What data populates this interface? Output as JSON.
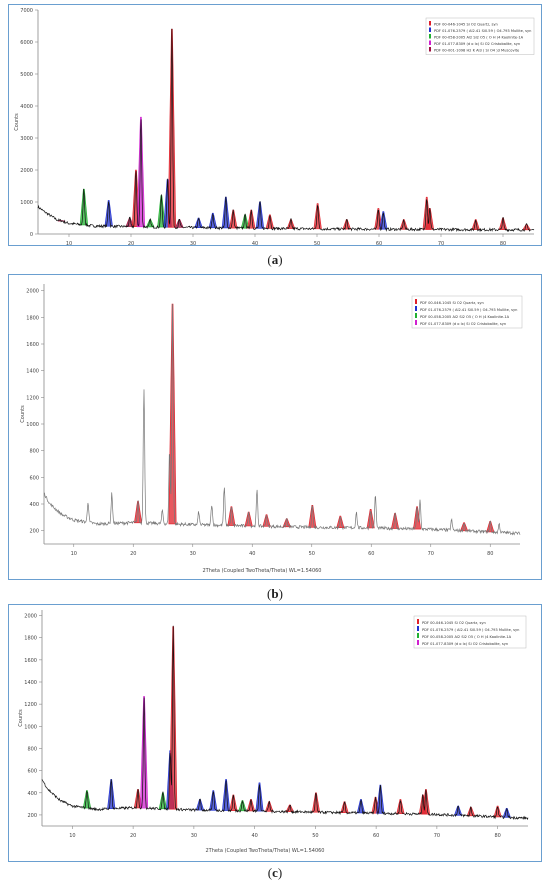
{
  "captions": [
    "(a)",
    "(b)",
    "(c)"
  ],
  "caption_letters": [
    "a",
    "b",
    "c"
  ],
  "colors": {
    "quartz": "#e0202a",
    "mullite": "#2030d0",
    "kaolinite": "#20b030",
    "cristobalite": "#d020d0",
    "muscovite": "#a01040",
    "pattern": "#111111",
    "pattern_gray": "#777777",
    "frame": "#6a9fd0"
  },
  "chart_data": [
    {
      "type": "line",
      "panel": "a",
      "title": "",
      "xlabel": "",
      "ylabel": "Counts",
      "xlim": [
        5,
        85
      ],
      "ylim": [
        0,
        7000
      ],
      "xticks": [
        10,
        20,
        30,
        40,
        50,
        60,
        70,
        80
      ],
      "yticks": [
        0,
        1000,
        2000,
        3000,
        4000,
        5000,
        6000,
        7000
      ],
      "ytick_labels": [
        "0",
        "1000",
        "2000",
        "3000",
        "4000",
        "5000",
        "6000",
        "7000"
      ],
      "grid": false,
      "legend_position": "top-right",
      "legend": [
        {
          "phase": "quartz",
          "label": "PDF 00-046-1045 Si O2 Quartz, syn"
        },
        {
          "phase": "mullite",
          "label": "PDF 01-076-2579 ( Al2.41 Si0.59 ) O4.793 Mullite, syn"
        },
        {
          "phase": "kaolinite",
          "label": "PDF 00-058-2005 Al2 Si2 O5 ( O H )4 Kaolinite-1A"
        },
        {
          "phase": "cristobalite",
          "label": "PDF 01-077-8309 (d o lx) Si O2 Cristobalite, syn"
        },
        {
          "phase": "muscovite",
          "label": "PDF 00-001-1098 H2 K Al3 ( Si O4 )3 Muscovite"
        }
      ],
      "background": [
        [
          5,
          850
        ],
        [
          6,
          700
        ],
        [
          8,
          450
        ],
        [
          10,
          330
        ],
        [
          14,
          250
        ],
        [
          20,
          230
        ],
        [
          30,
          200
        ],
        [
          40,
          180
        ],
        [
          50,
          160
        ],
        [
          60,
          150
        ],
        [
          70,
          140
        ],
        [
          85,
          130
        ]
      ],
      "peaks": [
        {
          "x": 8.8,
          "y": 420,
          "phase": "muscovite"
        },
        {
          "x": 12.4,
          "y": 1400,
          "phase": "kaolinite"
        },
        {
          "x": 16.4,
          "y": 1050,
          "phase": "mullite"
        },
        {
          "x": 19.8,
          "y": 500,
          "phase": "muscovite"
        },
        {
          "x": 20.8,
          "y": 2000,
          "phase": "quartz"
        },
        {
          "x": 21.6,
          "y": 3650,
          "phase": "cristobalite"
        },
        {
          "x": 23.1,
          "y": 450,
          "phase": "kaolinite"
        },
        {
          "x": 24.9,
          "y": 1200,
          "phase": "kaolinite"
        },
        {
          "x": 25.9,
          "y": 1700,
          "phase": "mullite"
        },
        {
          "x": 26.6,
          "y": 6400,
          "phase": "quartz"
        },
        {
          "x": 27.8,
          "y": 450,
          "phase": "muscovite"
        },
        {
          "x": 30.9,
          "y": 500,
          "phase": "mullite"
        },
        {
          "x": 33.2,
          "y": 650,
          "phase": "mullite"
        },
        {
          "x": 35.3,
          "y": 1150,
          "phase": "mullite"
        },
        {
          "x": 36.5,
          "y": 750,
          "phase": "quartz"
        },
        {
          "x": 38.4,
          "y": 600,
          "phase": "kaolinite"
        },
        {
          "x": 39.4,
          "y": 750,
          "phase": "quartz"
        },
        {
          "x": 40.8,
          "y": 1000,
          "phase": "mullite"
        },
        {
          "x": 42.4,
          "y": 600,
          "phase": "quartz"
        },
        {
          "x": 45.8,
          "y": 450,
          "phase": "quartz"
        },
        {
          "x": 50.1,
          "y": 950,
          "phase": "quartz"
        },
        {
          "x": 54.8,
          "y": 450,
          "phase": "quartz"
        },
        {
          "x": 59.9,
          "y": 800,
          "phase": "quartz"
        },
        {
          "x": 60.7,
          "y": 700,
          "phase": "mullite"
        },
        {
          "x": 64.0,
          "y": 450,
          "phase": "quartz"
        },
        {
          "x": 67.7,
          "y": 1150,
          "phase": "quartz"
        },
        {
          "x": 68.2,
          "y": 800,
          "phase": "quartz"
        },
        {
          "x": 75.6,
          "y": 450,
          "phase": "quartz"
        },
        {
          "x": 80.0,
          "y": 500,
          "phase": "quartz"
        },
        {
          "x": 83.8,
          "y": 300,
          "phase": "quartz"
        }
      ]
    },
    {
      "type": "line",
      "panel": "b",
      "title": "",
      "xlabel": "2Theta (Coupled TwoTheta/Theta) WL=1.54060",
      "ylabel": "Counts",
      "xlim": [
        5,
        85
      ],
      "ylim": [
        100,
        2050
      ],
      "xticks": [
        10,
        20,
        30,
        40,
        50,
        60,
        70,
        80
      ],
      "yticks": [
        200,
        400,
        600,
        800,
        1000,
        1200,
        1400,
        1600,
        1800,
        2000
      ],
      "ytick_labels": [
        "200",
        "400",
        "600",
        "800",
        "1000",
        "1200",
        "1400",
        "1600",
        "1800",
        "2000"
      ],
      "grid": false,
      "legend_position": "top-right",
      "legend": [
        {
          "phase": "quartz",
          "label": "PDF 00-046-1045 Si O2 Quartz, syn"
        },
        {
          "phase": "mullite",
          "label": "PDF 01-076-2579 ( Al2.41 Si0.59 ) O4.793 Mullite, syn"
        },
        {
          "phase": "kaolinite",
          "label": "PDF 00-058-2005 Al2 Si2 O5 ( O H )4 Kaolinite-1A"
        },
        {
          "phase": "cristobalite",
          "label": "PDF 01-077-8309 (d o lx) Si O2 Cristobalite, syn"
        }
      ],
      "background": [
        [
          5,
          480
        ],
        [
          6,
          400
        ],
        [
          8,
          320
        ],
        [
          10,
          280
        ],
        [
          14,
          250
        ],
        [
          20,
          260
        ],
        [
          30,
          245
        ],
        [
          40,
          235
        ],
        [
          50,
          225
        ],
        [
          60,
          220
        ],
        [
          70,
          210
        ],
        [
          85,
          180
        ]
      ],
      "peaks": [
        {
          "x": 12.4,
          "y": 420,
          "phase": "none"
        },
        {
          "x": 16.4,
          "y": 480,
          "phase": "none"
        },
        {
          "x": 20.8,
          "y": 420,
          "phase": "quartz"
        },
        {
          "x": 21.8,
          "y": 1270,
          "phase": "none"
        },
        {
          "x": 24.9,
          "y": 350,
          "phase": "none"
        },
        {
          "x": 26.1,
          "y": 800,
          "phase": "none"
        },
        {
          "x": 26.6,
          "y": 1900,
          "phase": "quartz"
        },
        {
          "x": 31.0,
          "y": 340,
          "phase": "none"
        },
        {
          "x": 33.2,
          "y": 400,
          "phase": "none"
        },
        {
          "x": 35.3,
          "y": 520,
          "phase": "none"
        },
        {
          "x": 36.5,
          "y": 380,
          "phase": "quartz"
        },
        {
          "x": 39.4,
          "y": 340,
          "phase": "quartz"
        },
        {
          "x": 40.8,
          "y": 500,
          "phase": "none"
        },
        {
          "x": 42.4,
          "y": 320,
          "phase": "quartz"
        },
        {
          "x": 45.8,
          "y": 290,
          "phase": "quartz"
        },
        {
          "x": 50.1,
          "y": 390,
          "phase": "quartz"
        },
        {
          "x": 54.8,
          "y": 310,
          "phase": "quartz"
        },
        {
          "x": 57.5,
          "y": 340,
          "phase": "none"
        },
        {
          "x": 59.9,
          "y": 360,
          "phase": "quartz"
        },
        {
          "x": 60.7,
          "y": 470,
          "phase": "none"
        },
        {
          "x": 64.0,
          "y": 330,
          "phase": "quartz"
        },
        {
          "x": 67.7,
          "y": 380,
          "phase": "quartz"
        },
        {
          "x": 68.2,
          "y": 430,
          "phase": "none"
        },
        {
          "x": 73.5,
          "y": 280,
          "phase": "none"
        },
        {
          "x": 75.6,
          "y": 260,
          "phase": "quartz"
        },
        {
          "x": 80.0,
          "y": 270,
          "phase": "quartz"
        },
        {
          "x": 81.5,
          "y": 250,
          "phase": "none"
        }
      ]
    },
    {
      "type": "line",
      "panel": "c",
      "title": "",
      "xlabel": "2Theta (Coupled TwoTheta/Theta) WL=1.54060",
      "ylabel": "Counts",
      "xlim": [
        5,
        85
      ],
      "ylim": [
        100,
        2050
      ],
      "xticks": [
        10,
        20,
        30,
        40,
        50,
        60,
        70,
        80
      ],
      "yticks": [
        200,
        400,
        600,
        800,
        1000,
        1200,
        1400,
        1600,
        1800,
        2000
      ],
      "ytick_labels": [
        "200",
        "400",
        "600",
        "800",
        "1000",
        "1200",
        "1400",
        "1600",
        "1800",
        "2000"
      ],
      "grid": false,
      "legend_position": "top-right",
      "legend": [
        {
          "phase": "quartz",
          "label": "PDF 00-046-1045 Si O2 Quartz, syn"
        },
        {
          "phase": "mullite",
          "label": "PDF 01-076-2579 ( Al2.41 Si0.59 ) O4.793 Mullite, syn"
        },
        {
          "phase": "kaolinite",
          "label": "PDF 00-058-2005 Al2 Si2 O5 ( O H )4 Kaolinite-1A"
        },
        {
          "phase": "cristobalite",
          "label": "PDF 01-077-8309 (d o lx) Si O2 Cristobalite, syn"
        }
      ],
      "background": [
        [
          5,
          520
        ],
        [
          6,
          430
        ],
        [
          8,
          330
        ],
        [
          10,
          280
        ],
        [
          14,
          250
        ],
        [
          20,
          265
        ],
        [
          30,
          245
        ],
        [
          40,
          235
        ],
        [
          50,
          225
        ],
        [
          60,
          215
        ],
        [
          70,
          205
        ],
        [
          85,
          170
        ]
      ],
      "peaks": [
        {
          "x": 12.4,
          "y": 420,
          "phase": "kaolinite"
        },
        {
          "x": 16.4,
          "y": 520,
          "phase": "mullite"
        },
        {
          "x": 20.8,
          "y": 430,
          "phase": "quartz"
        },
        {
          "x": 21.8,
          "y": 1270,
          "phase": "cristobalite"
        },
        {
          "x": 24.9,
          "y": 400,
          "phase": "kaolinite"
        },
        {
          "x": 26.1,
          "y": 780,
          "phase": "mullite"
        },
        {
          "x": 26.6,
          "y": 1900,
          "phase": "quartz"
        },
        {
          "x": 31.0,
          "y": 340,
          "phase": "mullite"
        },
        {
          "x": 33.2,
          "y": 420,
          "phase": "mullite"
        },
        {
          "x": 35.3,
          "y": 520,
          "phase": "mullite"
        },
        {
          "x": 36.5,
          "y": 380,
          "phase": "quartz"
        },
        {
          "x": 38.0,
          "y": 330,
          "phase": "kaolinite"
        },
        {
          "x": 39.4,
          "y": 340,
          "phase": "quartz"
        },
        {
          "x": 40.8,
          "y": 490,
          "phase": "mullite"
        },
        {
          "x": 42.4,
          "y": 320,
          "phase": "quartz"
        },
        {
          "x": 45.8,
          "y": 290,
          "phase": "quartz"
        },
        {
          "x": 50.1,
          "y": 400,
          "phase": "quartz"
        },
        {
          "x": 54.8,
          "y": 320,
          "phase": "quartz"
        },
        {
          "x": 57.5,
          "y": 340,
          "phase": "mullite"
        },
        {
          "x": 59.9,
          "y": 360,
          "phase": "quartz"
        },
        {
          "x": 60.7,
          "y": 470,
          "phase": "mullite"
        },
        {
          "x": 64.0,
          "y": 340,
          "phase": "quartz"
        },
        {
          "x": 67.7,
          "y": 380,
          "phase": "quartz"
        },
        {
          "x": 68.2,
          "y": 430,
          "phase": "quartz"
        },
        {
          "x": 73.5,
          "y": 280,
          "phase": "mullite"
        },
        {
          "x": 75.6,
          "y": 270,
          "phase": "quartz"
        },
        {
          "x": 80.0,
          "y": 280,
          "phase": "quartz"
        },
        {
          "x": 81.5,
          "y": 260,
          "phase": "mullite"
        }
      ]
    }
  ]
}
